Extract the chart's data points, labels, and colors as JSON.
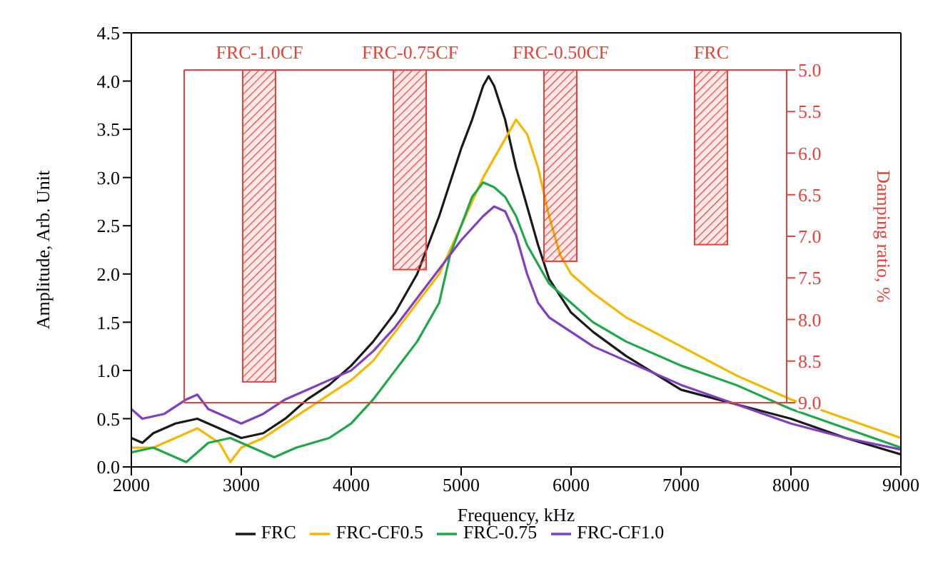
{
  "chart_data": [
    {
      "type": "line",
      "xlabel": "Frequency, kHz",
      "ylabel": "Amplitude, Arb. Unit",
      "xlim": [
        2000,
        9000
      ],
      "xticks": [
        2000,
        3000,
        4000,
        5000,
        6000,
        7000,
        8000,
        9000
      ],
      "ylim": [
        0,
        4.5
      ],
      "yticks": [
        {
          "value": 0,
          "label": "0.0"
        },
        {
          "value": 0.5,
          "label": "0.5"
        },
        {
          "value": 1,
          "label": "1.0"
        },
        {
          "value": 1.5,
          "label": "1.5"
        },
        {
          "value": 2,
          "label": "2.0"
        },
        {
          "value": 2.5,
          "label": "2.5"
        },
        {
          "value": 3,
          "label": "3.0"
        },
        {
          "value": 3.5,
          "label": "3.5"
        },
        {
          "value": 4,
          "label": "4.0"
        },
        {
          "value": 4.5,
          "label": "4.5"
        }
      ],
      "legend": "bottom",
      "marker": "none",
      "line_style": "solid",
      "series": [
        {
          "name": "FRC",
          "color": "#1a1a1a",
          "x": [
            2000,
            2100,
            2200,
            2400,
            2600,
            2800,
            3000,
            3200,
            3400,
            3600,
            3800,
            4000,
            4200,
            4400,
            4600,
            4800,
            5000,
            5100,
            5200,
            5250,
            5300,
            5400,
            5500,
            5600,
            5700,
            5800,
            6000,
            6200,
            6500,
            7000,
            7500,
            8000,
            8500,
            9000
          ],
          "values": [
            0.3,
            0.25,
            0.35,
            0.45,
            0.5,
            0.4,
            0.3,
            0.35,
            0.5,
            0.7,
            0.85,
            1.05,
            1.3,
            1.6,
            2.0,
            2.6,
            3.3,
            3.6,
            3.95,
            4.05,
            3.95,
            3.6,
            3.1,
            2.7,
            2.3,
            1.95,
            1.6,
            1.4,
            1.15,
            0.8,
            0.65,
            0.5,
            0.3,
            0.13
          ]
        },
        {
          "name": "FRC-CF0.5",
          "color": "#f5b800",
          "x": [
            2000,
            2200,
            2400,
            2600,
            2800,
            2900,
            3000,
            3200,
            3400,
            3600,
            3800,
            4000,
            4200,
            4400,
            4600,
            4800,
            5000,
            5200,
            5400,
            5500,
            5600,
            5700,
            5800,
            5900,
            6000,
            6200,
            6500,
            7000,
            7500,
            8000,
            8500,
            9000
          ],
          "values": [
            0.2,
            0.2,
            0.3,
            0.4,
            0.25,
            0.05,
            0.2,
            0.3,
            0.45,
            0.6,
            0.75,
            0.9,
            1.1,
            1.4,
            1.7,
            2.0,
            2.5,
            3.0,
            3.4,
            3.6,
            3.45,
            3.1,
            2.6,
            2.2,
            2.0,
            1.8,
            1.55,
            1.25,
            0.95,
            0.7,
            0.5,
            0.3
          ]
        },
        {
          "name": "FRC-0.75",
          "color": "#1fa84a",
          "x": [
            2000,
            2200,
            2400,
            2500,
            2700,
            2900,
            3100,
            3300,
            3500,
            3800,
            4000,
            4200,
            4400,
            4600,
            4800,
            4900,
            5000,
            5100,
            5200,
            5300,
            5400,
            5500,
            5600,
            5800,
            6000,
            6200,
            6500,
            7000,
            7500,
            8000,
            8500,
            9000
          ],
          "values": [
            0.15,
            0.2,
            0.1,
            0.05,
            0.25,
            0.3,
            0.2,
            0.1,
            0.2,
            0.3,
            0.45,
            0.7,
            1.0,
            1.3,
            1.7,
            2.2,
            2.5,
            2.8,
            2.95,
            2.9,
            2.8,
            2.6,
            2.3,
            1.9,
            1.7,
            1.5,
            1.3,
            1.05,
            0.85,
            0.6,
            0.4,
            0.2
          ]
        },
        {
          "name": "FRC-CF1.0",
          "color": "#7f3fbf",
          "x": [
            2000,
            2100,
            2300,
            2500,
            2600,
            2700,
            2900,
            3000,
            3200,
            3400,
            3600,
            3800,
            4000,
            4200,
            4400,
            4600,
            4800,
            5000,
            5200,
            5300,
            5400,
            5500,
            5600,
            5700,
            5800,
            6000,
            6200,
            6500,
            7000,
            7500,
            8000,
            8500,
            9000
          ],
          "values": [
            0.6,
            0.5,
            0.55,
            0.7,
            0.75,
            0.6,
            0.5,
            0.45,
            0.55,
            0.7,
            0.8,
            0.9,
            1.0,
            1.2,
            1.45,
            1.75,
            2.05,
            2.35,
            2.6,
            2.7,
            2.65,
            2.4,
            2.0,
            1.7,
            1.55,
            1.4,
            1.25,
            1.1,
            0.85,
            0.65,
            0.45,
            0.3,
            0.18
          ]
        }
      ]
    },
    {
      "type": "bar",
      "ylabel": "Damping ratio, %",
      "categories": [
        "FRC-1.0CF",
        "FRC-0.75CF",
        "FRC-0.50CF",
        "FRC"
      ],
      "values": [
        8.75,
        7.4,
        7.3,
        7.1
      ],
      "color": "#e8413a",
      "ylim": [
        9,
        5
      ],
      "yticks": [
        {
          "value": 5,
          "label": "5.0"
        },
        {
          "value": 5.5,
          "label": "5.5"
        },
        {
          "value": 6,
          "label": "6.0"
        },
        {
          "value": 6.5,
          "label": "6.5"
        },
        {
          "value": 7,
          "label": "7.0"
        },
        {
          "value": 7.5,
          "label": "7.5"
        },
        {
          "value": 8,
          "label": "8.0"
        },
        {
          "value": 8.5,
          "label": "8.5"
        },
        {
          "value": 9,
          "label": "9.0"
        }
      ]
    }
  ]
}
